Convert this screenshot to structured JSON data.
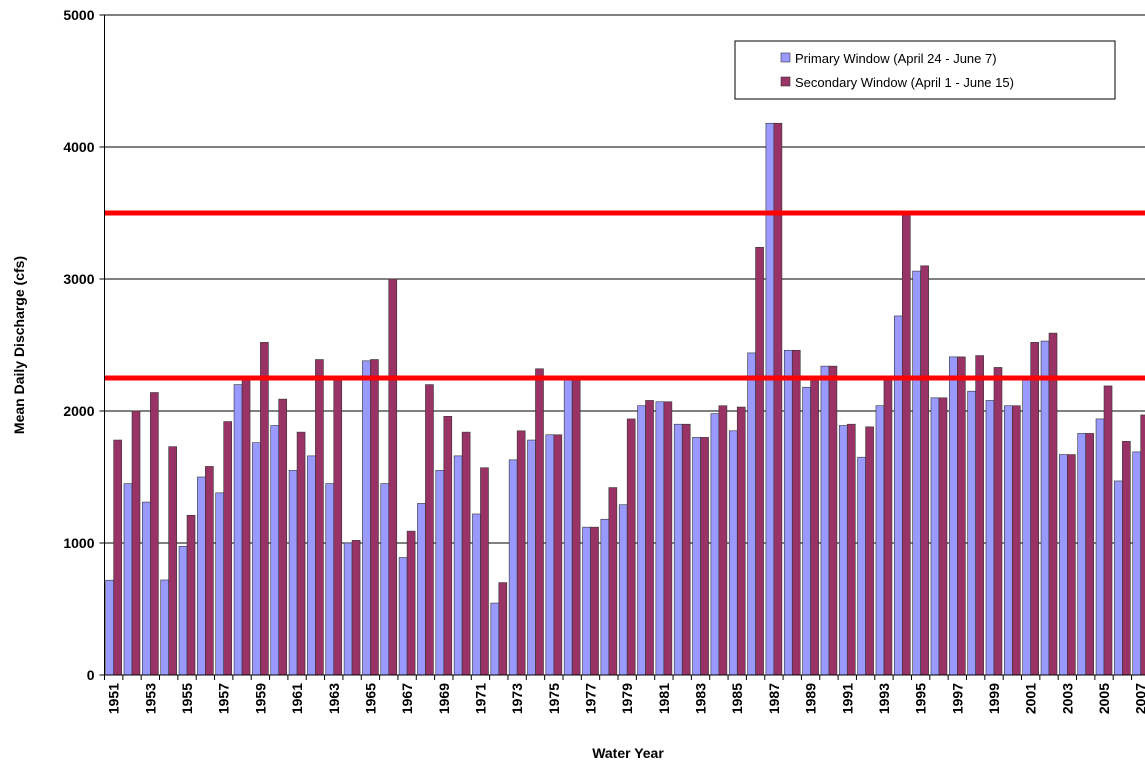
{
  "chart_data": {
    "type": "bar",
    "xlabel": "Water Year",
    "ylabel": "Mean Daily Discharge (cfs)",
    "categories": [
      "1951",
      null,
      "1953",
      null,
      "1955",
      null,
      "1957",
      null,
      "1959",
      null,
      "1961",
      null,
      "1963",
      null,
      "1965",
      null,
      "1967",
      null,
      "1969",
      null,
      "1971",
      null,
      "1973",
      null,
      "1975",
      null,
      "1977",
      null,
      "1979",
      null,
      "1981",
      null,
      "1983",
      null,
      "1985",
      null,
      "1987",
      null,
      "1989",
      null,
      "1991",
      null,
      "1993",
      null,
      "1995",
      null,
      "1997",
      null,
      "1999",
      null,
      "2001",
      null,
      "2003",
      null,
      "2005",
      null,
      "2007"
    ],
    "series": [
      {
        "name": "Primary Window (April 24 - June 7)",
        "color": "#9999ff",
        "values": [
          718,
          1450,
          1310,
          720,
          975,
          1500,
          1380,
          2200,
          1760,
          1890,
          1550,
          1660,
          1450,
          1000,
          2380,
          1450,
          890,
          1300,
          1550,
          1660,
          1220,
          545,
          1630,
          1780,
          1820,
          2250,
          1120,
          1180,
          1290,
          2040,
          2070,
          1900,
          1800,
          1980,
          1850,
          2440,
          4180,
          2460,
          2180,
          2340,
          1890,
          1650,
          2040,
          2720,
          3060,
          2100,
          2410,
          2150,
          2080,
          2040,
          2260,
          2530,
          1670,
          1830,
          1940,
          1470,
          1690
        ]
      },
      {
        "name": "Secondary Window (April 1 - June 15)",
        "color": "#993366",
        "values": [
          1780,
          2000,
          2140,
          1730,
          1210,
          1580,
          1920,
          2240,
          2520,
          2090,
          1840,
          2390,
          2250,
          1020,
          2390,
          3000,
          1090,
          2200,
          1960,
          1840,
          1570,
          700,
          1850,
          2320,
          1820,
          2250,
          1120,
          1420,
          1940,
          2080,
          2070,
          1900,
          1800,
          2040,
          2030,
          3240,
          4180,
          2460,
          2240,
          2340,
          1900,
          1880,
          2250,
          3500,
          3100,
          2100,
          2410,
          2420,
          2330,
          2040,
          2520,
          2590,
          1670,
          1830,
          2190,
          1770,
          1970
        ]
      }
    ],
    "reference_lines": {
      "color": "#ff0000",
      "values": [
        3500,
        2250
      ]
    },
    "ylim": [
      0,
      5000
    ],
    "yticks": [
      0,
      1000,
      2000,
      3000,
      4000,
      5000
    ],
    "grid": true,
    "legend": "upper right"
  }
}
